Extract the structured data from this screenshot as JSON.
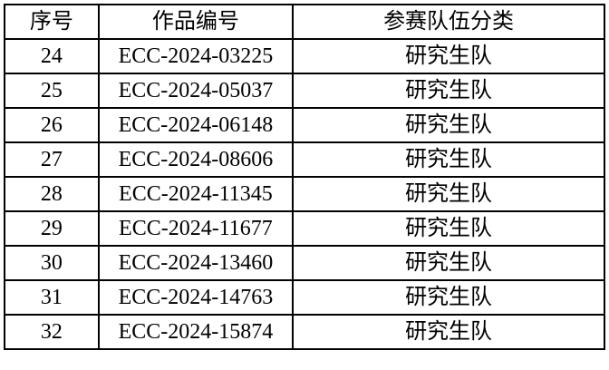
{
  "headers": [
    "序号",
    "作品编号",
    "参赛队伍分类"
  ],
  "rows": [
    [
      "24",
      "ECC-2024-03225",
      "研究生队"
    ],
    [
      "25",
      "ECC-2024-05037",
      "研究生队"
    ],
    [
      "26",
      "ECC-2024-06148",
      "研究生队"
    ],
    [
      "27",
      "ECC-2024-08606",
      "研究生队"
    ],
    [
      "28",
      "ECC-2024-11345",
      "研究生队"
    ],
    [
      "29",
      "ECC-2024-11677",
      "研究生队"
    ],
    [
      "30",
      "ECC-2024-13460",
      "研究生队"
    ],
    [
      "31",
      "ECC-2024-14763",
      "研究生队"
    ],
    [
      "32",
      "ECC-2024-15874",
      "研究生队"
    ]
  ]
}
